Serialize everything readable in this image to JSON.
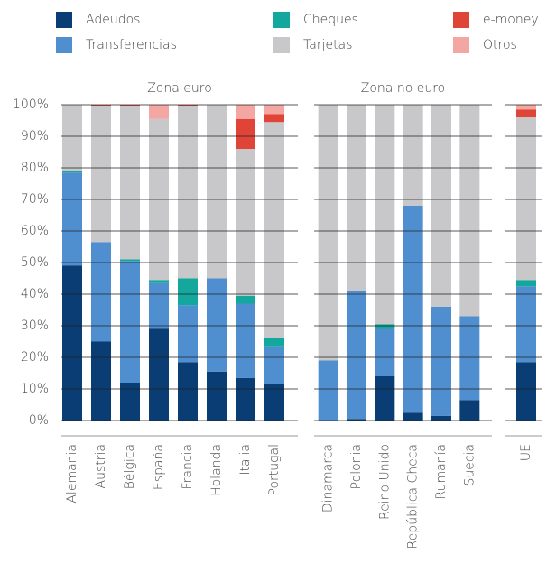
{
  "chart_data": [
    {
      "type": "bar",
      "stacked": true,
      "title": "Zona euro",
      "categories": [
        "Alemania",
        "Austria",
        "Bélgica",
        "España",
        "Francia",
        "Holanda",
        "Italia",
        "Portugal"
      ],
      "ylim": [
        0,
        100
      ],
      "grid": true,
      "yticks": [
        {
          "value": 0,
          "label": "0%"
        },
        {
          "value": 10,
          "label": "10%"
        },
        {
          "value": 20,
          "label": "20%"
        },
        {
          "value": 30,
          "label": "30%"
        },
        {
          "value": 40,
          "label": "40%"
        },
        {
          "value": 50,
          "label": "50%"
        },
        {
          "value": 60,
          "label": "60%"
        },
        {
          "value": 70,
          "label": "70%"
        },
        {
          "value": 80,
          "label": "80%"
        },
        {
          "value": 90,
          "label": "90%"
        },
        {
          "value": 100,
          "label": "100%"
        }
      ],
      "series": [
        {
          "name": "Adeudos",
          "color": "#0a3d73",
          "values": [
            49,
            25,
            12,
            29,
            18.5,
            15.5,
            13.5,
            11.5
          ]
        },
        {
          "name": "Transferencias",
          "color": "#4f8fcf",
          "values": [
            29.5,
            31.5,
            38.5,
            14.5,
            18,
            29.5,
            23.5,
            12
          ]
        },
        {
          "name": "Cheques",
          "color": "#14a79d",
          "values": [
            0.5,
            0,
            0.5,
            1,
            8.5,
            0,
            2.5,
            2.5
          ]
        },
        {
          "name": "Tarjetas",
          "color": "#c8c8ca",
          "values": [
            21,
            43,
            48.5,
            51,
            54.5,
            55,
            46.5,
            68.5
          ]
        },
        {
          "name": "e-money",
          "color": "#df4437",
          "values": [
            0,
            0.5,
            0.5,
            0,
            0.5,
            0,
            9.5,
            2.5
          ]
        },
        {
          "name": "Otros",
          "color": "#f4a6a2",
          "values": [
            0,
            0,
            0,
            4.5,
            0,
            0,
            4.5,
            3
          ]
        }
      ]
    },
    {
      "type": "bar",
      "stacked": true,
      "title": "Zona no euro",
      "categories": [
        "Dinamarca",
        "Polonia",
        "Reino Unido",
        "República Checa",
        "Rumanía",
        "Suecia"
      ],
      "ylim": [
        0,
        100
      ],
      "grid": true,
      "series": [
        {
          "name": "Adeudos",
          "color": "#0a3d73",
          "values": [
            0,
            0.5,
            14,
            2.5,
            1.5,
            6.5
          ]
        },
        {
          "name": "Transferencias",
          "color": "#4f8fcf",
          "values": [
            19,
            40.5,
            15,
            65.5,
            34.5,
            26.5
          ]
        },
        {
          "name": "Cheques",
          "color": "#14a79d",
          "values": [
            0,
            0,
            1.5,
            0,
            0,
            0
          ]
        },
        {
          "name": "Tarjetas",
          "color": "#c8c8ca",
          "values": [
            81,
            59,
            69.5,
            32,
            64,
            67
          ]
        },
        {
          "name": "e-money",
          "color": "#df4437",
          "values": [
            0,
            0,
            0,
            0,
            0,
            0
          ]
        },
        {
          "name": "Otros",
          "color": "#f4a6a2",
          "values": [
            0,
            0,
            0,
            0,
            0,
            0
          ]
        }
      ]
    },
    {
      "type": "bar",
      "stacked": true,
      "categories": [
        "UE"
      ],
      "ylim": [
        0,
        100
      ],
      "grid": true,
      "series": [
        {
          "name": "Adeudos",
          "color": "#0a3d73",
          "values": [
            18.5
          ]
        },
        {
          "name": "Transferencias",
          "color": "#4f8fcf",
          "values": [
            24
          ]
        },
        {
          "name": "Cheques",
          "color": "#14a79d",
          "values": [
            2
          ]
        },
        {
          "name": "Tarjetas",
          "color": "#c8c8ca",
          "values": [
            51.5
          ]
        },
        {
          "name": "e-money",
          "color": "#df4437",
          "values": [
            2.5
          ]
        },
        {
          "name": "Otros",
          "color": "#f4a6a2",
          "values": [
            1.5
          ]
        }
      ]
    }
  ]
}
